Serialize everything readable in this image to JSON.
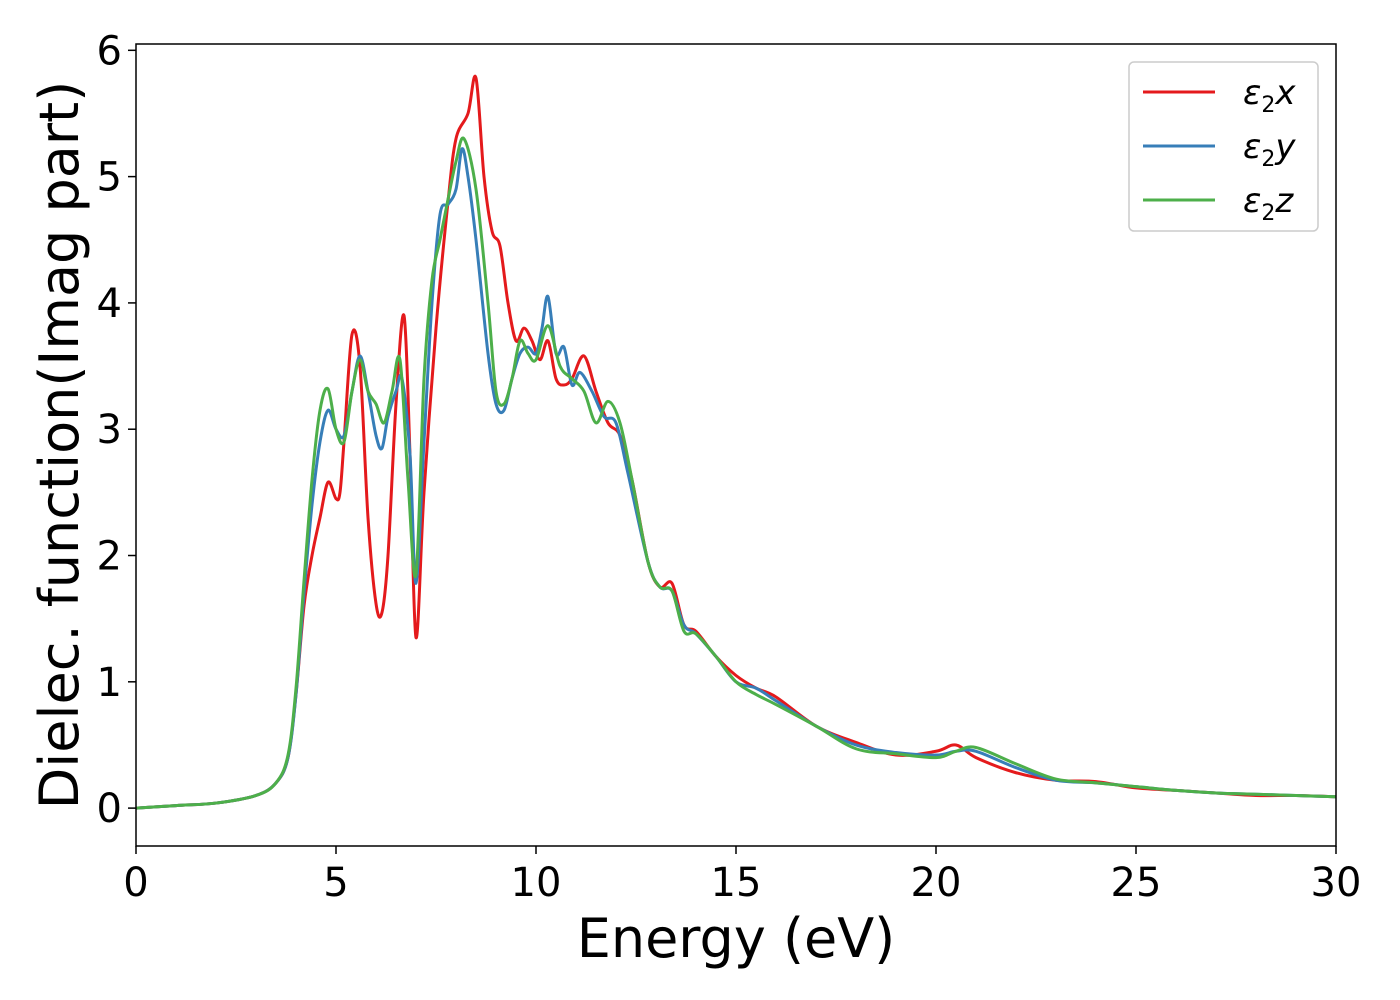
{
  "chart_data": {
    "type": "line",
    "title": "",
    "xlabel": "Energy (eV)",
    "ylabel": "Dielec. function(Imag part)",
    "xlim": [
      0,
      30
    ],
    "ylim": [
      -0.3,
      6.05
    ],
    "xticks": [
      0,
      5,
      10,
      15,
      20,
      25,
      30
    ],
    "yticks": [
      0,
      1,
      2,
      3,
      4,
      5,
      6
    ],
    "grid": false,
    "legend_position": "top-right",
    "series": [
      {
        "name": "ε2x",
        "legend_base": "ε",
        "legend_sub": "2",
        "legend_var": "x",
        "color": "#e41a1c",
        "x": [
          0,
          1,
          2,
          3,
          3.5,
          3.8,
          4.0,
          4.2,
          4.4,
          4.6,
          4.8,
          5.0,
          5.1,
          5.2,
          5.4,
          5.6,
          5.8,
          6.0,
          6.15,
          6.3,
          6.5,
          6.7,
          6.85,
          7.0,
          7.2,
          7.5,
          7.8,
          8.0,
          8.3,
          8.5,
          8.7,
          8.9,
          9.1,
          9.3,
          9.5,
          9.7,
          9.9,
          10.1,
          10.3,
          10.5,
          10.7,
          10.9,
          11.2,
          11.5,
          11.8,
          12.1,
          12.4,
          12.8,
          13.1,
          13.4,
          13.7,
          14.0,
          14.5,
          15.0,
          15.5,
          16.0,
          17.0,
          18.0,
          19.0,
          20.0,
          20.5,
          21.0,
          22.0,
          23.0,
          24.0,
          25.0,
          26.0,
          27.0,
          28.0,
          29.0,
          30.0
        ],
        "y": [
          0.0,
          0.02,
          0.04,
          0.1,
          0.2,
          0.4,
          0.9,
          1.6,
          2.0,
          2.3,
          2.58,
          2.45,
          2.5,
          2.9,
          3.75,
          3.5,
          2.3,
          1.62,
          1.55,
          2.0,
          3.2,
          3.9,
          2.8,
          1.35,
          2.5,
          3.8,
          4.8,
          5.3,
          5.5,
          5.78,
          5.0,
          4.57,
          4.45,
          4.0,
          3.7,
          3.8,
          3.7,
          3.55,
          3.7,
          3.4,
          3.35,
          3.4,
          3.58,
          3.3,
          3.05,
          2.95,
          2.6,
          1.95,
          1.75,
          1.78,
          1.45,
          1.4,
          1.2,
          1.05,
          0.95,
          0.88,
          0.65,
          0.52,
          0.42,
          0.45,
          0.5,
          0.4,
          0.28,
          0.22,
          0.21,
          0.16,
          0.14,
          0.12,
          0.1,
          0.1,
          0.09
        ]
      },
      {
        "name": "ε2y",
        "legend_base": "ε",
        "legend_sub": "2",
        "legend_var": "y",
        "color": "#377eb8",
        "x": [
          0,
          1,
          2,
          3,
          3.5,
          3.8,
          4.0,
          4.2,
          4.4,
          4.6,
          4.8,
          5.0,
          5.2,
          5.4,
          5.6,
          5.8,
          6.0,
          6.15,
          6.3,
          6.5,
          6.65,
          6.85,
          7.0,
          7.2,
          7.4,
          7.6,
          7.8,
          8.0,
          8.15,
          8.3,
          8.5,
          8.8,
          9.0,
          9.2,
          9.4,
          9.6,
          9.8,
          10.0,
          10.15,
          10.3,
          10.5,
          10.7,
          10.9,
          11.1,
          11.4,
          11.7,
          12.0,
          12.3,
          12.8,
          13.1,
          13.4,
          13.7,
          14.0,
          14.5,
          15.0,
          15.5,
          16.0,
          17.0,
          18.0,
          19.0,
          20.0,
          20.5,
          21.0,
          22.0,
          23.0,
          24.0,
          25.0,
          26.0,
          27.0,
          28.0,
          29.0,
          30.0
        ],
        "y": [
          0.0,
          0.02,
          0.04,
          0.1,
          0.2,
          0.4,
          0.9,
          1.7,
          2.4,
          2.9,
          3.15,
          3.0,
          2.95,
          3.3,
          3.58,
          3.3,
          2.95,
          2.85,
          3.1,
          3.3,
          3.4,
          2.8,
          1.78,
          2.9,
          4.0,
          4.7,
          4.78,
          4.9,
          5.22,
          5.0,
          4.5,
          3.6,
          3.2,
          3.15,
          3.4,
          3.6,
          3.65,
          3.6,
          3.8,
          4.05,
          3.6,
          3.65,
          3.35,
          3.45,
          3.3,
          3.1,
          3.05,
          2.65,
          1.95,
          1.75,
          1.72,
          1.45,
          1.38,
          1.2,
          1.0,
          0.95,
          0.85,
          0.65,
          0.5,
          0.44,
          0.42,
          0.45,
          0.45,
          0.32,
          0.22,
          0.2,
          0.17,
          0.14,
          0.12,
          0.11,
          0.1,
          0.09
        ]
      },
      {
        "name": "ε2z",
        "legend_base": "ε",
        "legend_sub": "2",
        "legend_var": "z",
        "color": "#4daf4a",
        "x": [
          0,
          1,
          2,
          3,
          3.5,
          3.8,
          4.0,
          4.2,
          4.4,
          4.6,
          4.8,
          5.0,
          5.2,
          5.4,
          5.6,
          5.8,
          6.0,
          6.2,
          6.4,
          6.6,
          6.8,
          7.0,
          7.2,
          7.4,
          7.6,
          7.8,
          8.0,
          8.2,
          8.5,
          8.8,
          9.0,
          9.2,
          9.4,
          9.6,
          9.8,
          10.0,
          10.3,
          10.6,
          10.9,
          11.2,
          11.5,
          11.8,
          12.1,
          12.4,
          12.8,
          13.1,
          13.4,
          13.7,
          14.0,
          14.5,
          15.0,
          15.5,
          16.0,
          17.0,
          18.0,
          19.0,
          20.0,
          20.5,
          21.0,
          22.0,
          23.0,
          24.0,
          25.0,
          26.0,
          27.0,
          28.0,
          29.0,
          30.0
        ],
        "y": [
          0.0,
          0.02,
          0.04,
          0.1,
          0.2,
          0.42,
          0.95,
          1.8,
          2.6,
          3.15,
          3.32,
          3.0,
          2.9,
          3.3,
          3.55,
          3.3,
          3.2,
          3.05,
          3.3,
          3.55,
          2.6,
          1.85,
          3.4,
          4.18,
          4.5,
          4.82,
          5.12,
          5.3,
          4.9,
          4.0,
          3.3,
          3.2,
          3.4,
          3.7,
          3.6,
          3.55,
          3.82,
          3.5,
          3.4,
          3.3,
          3.05,
          3.22,
          3.05,
          2.6,
          1.95,
          1.75,
          1.72,
          1.4,
          1.38,
          1.2,
          1.0,
          0.9,
          0.82,
          0.65,
          0.47,
          0.43,
          0.4,
          0.45,
          0.48,
          0.35,
          0.23,
          0.2,
          0.17,
          0.14,
          0.12,
          0.11,
          0.1,
          0.09
        ]
      }
    ]
  }
}
